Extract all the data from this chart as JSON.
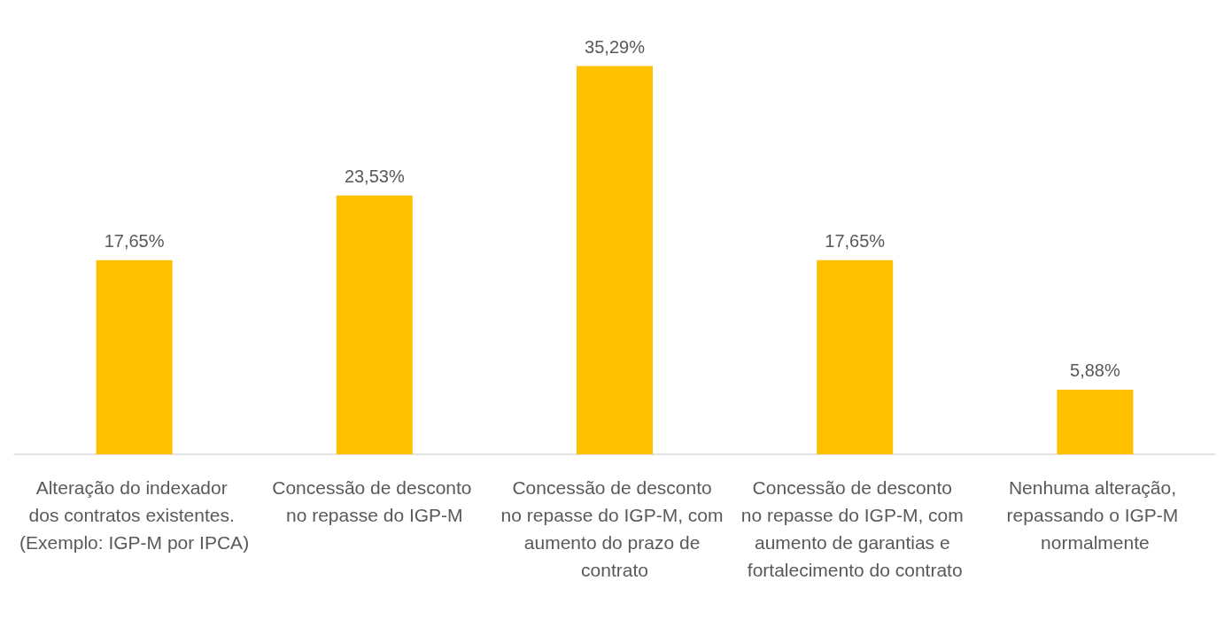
{
  "chart_data": {
    "type": "bar",
    "categories": [
      "Alteração do indexador dos contratos existentes. (Exemplo: IGP-M por IPCA)",
      "Concessão de desconto no repasse do IGP-M",
      "Concessão de desconto no repasse do IGP-M, com aumento do prazo de contrato",
      "Concessão de desconto no repasse do IGP-M, com aumento de garantias e fortalecimento do contrato",
      "Nenhuma alteração, repassando o IGP-M normalmente"
    ],
    "values": [
      17.65,
      23.53,
      35.29,
      17.65,
      5.88
    ],
    "value_labels": [
      "17,65%",
      "23,53%",
      "35,29%",
      "17,65%",
      "5,88%"
    ],
    "color": "#ffc000"
  }
}
